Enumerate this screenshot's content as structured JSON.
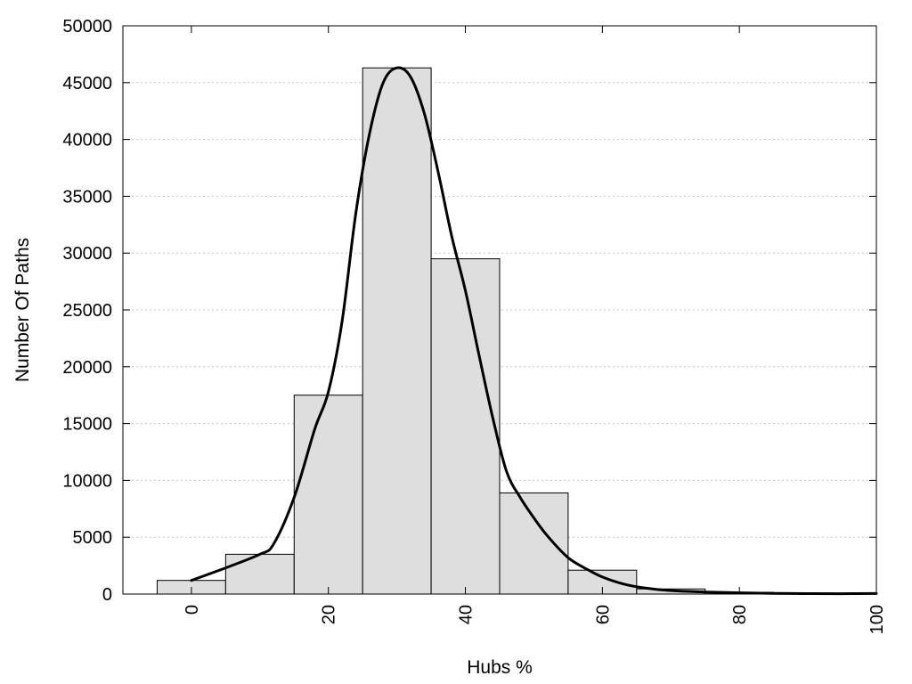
{
  "chart_data": {
    "type": "bar",
    "xlabel": "Hubs %",
    "ylabel": "Number Of Paths",
    "xlim": [
      -10,
      100
    ],
    "ylim": [
      0,
      50000
    ],
    "x_ticks": [
      0,
      20,
      40,
      60,
      80,
      100
    ],
    "y_ticks": [
      0,
      5000,
      10000,
      15000,
      20000,
      25000,
      30000,
      35000,
      40000,
      45000,
      50000
    ],
    "grid": "horizontal dotted",
    "bar_color": "#dedede",
    "bins": [
      {
        "from": -5,
        "to": 5,
        "value": 1200
      },
      {
        "from": 5,
        "to": 15,
        "value": 3500
      },
      {
        "from": 15,
        "to": 25,
        "value": 17500
      },
      {
        "from": 25,
        "to": 35,
        "value": 46300
      },
      {
        "from": 35,
        "to": 45,
        "value": 29500
      },
      {
        "from": 45,
        "to": 55,
        "value": 8900
      },
      {
        "from": 55,
        "to": 65,
        "value": 2100
      },
      {
        "from": 65,
        "to": 75,
        "value": 450
      },
      {
        "from": 75,
        "to": 85,
        "value": 150
      },
      {
        "from": 85,
        "to": 95,
        "value": 60
      },
      {
        "from": 95,
        "to": 100,
        "value": 30
      }
    ],
    "density_curve": {
      "x": [
        0,
        5,
        10,
        12,
        15,
        18,
        20,
        22,
        24,
        26,
        28,
        30,
        32,
        34,
        36,
        38,
        40,
        42,
        44,
        46,
        48,
        50,
        52,
        55,
        58,
        60,
        63,
        66,
        70,
        75,
        80,
        85,
        90,
        95,
        100
      ],
      "y": [
        1200,
        2300,
        3500,
        4400,
        8500,
        14500,
        17800,
        24000,
        33500,
        40500,
        45000,
        46300,
        45500,
        42300,
        37200,
        31500,
        26700,
        21000,
        15500,
        10800,
        8500,
        6700,
        5100,
        3200,
        2100,
        1500,
        900,
        550,
        300,
        180,
        110,
        60,
        40,
        30,
        50
      ]
    }
  }
}
